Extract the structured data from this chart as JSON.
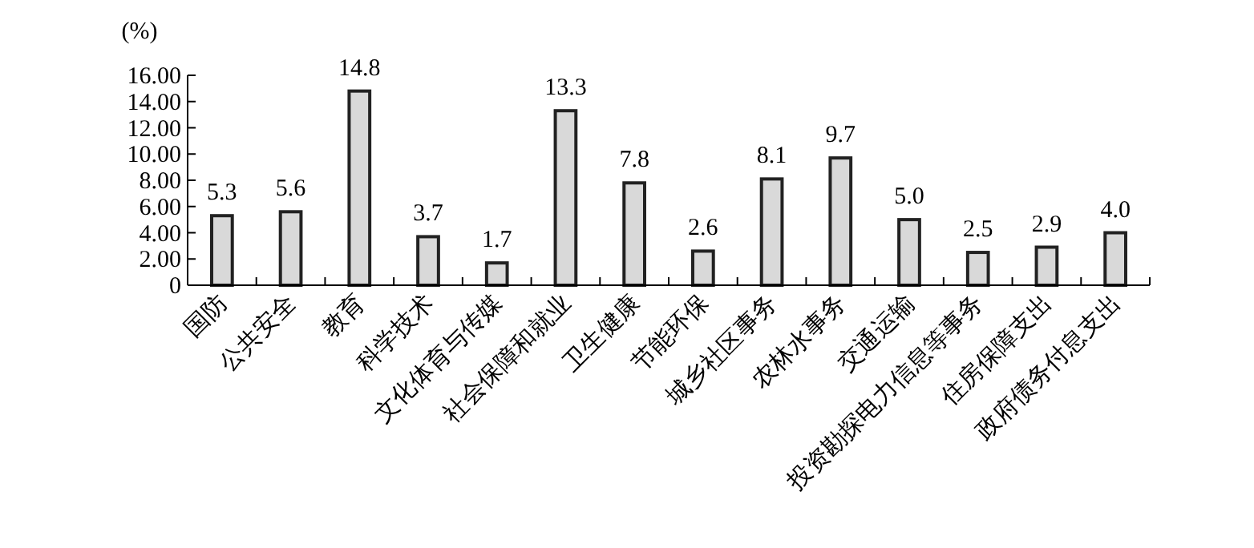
{
  "chart_data": {
    "type": "bar",
    "ylabel": "(%)",
    "categories": [
      "国防",
      "公共安全",
      "教育",
      "科学技术",
      "文化体育与传媒",
      "社会保障和就业",
      "卫生健康",
      "节能环保",
      "城乡社区事务",
      "农林水事务",
      "交通运输",
      "投资勘探电力信息等事务",
      "住房保障支出",
      "政府债务付息支出"
    ],
    "values": [
      5.3,
      5.6,
      14.8,
      3.7,
      1.7,
      13.3,
      7.8,
      2.6,
      8.1,
      9.7,
      5.0,
      2.5,
      2.9,
      4.0
    ],
    "value_labels": [
      "5.3",
      "5.6",
      "14.8",
      "3.7",
      "1.7",
      "13.3",
      "7.8",
      "2.6",
      "8.1",
      "9.7",
      "5.0",
      "2.5",
      "2.9",
      "4.0"
    ],
    "color": "#d9d9d9",
    "ylim": [
      0,
      16
    ],
    "yticks": [
      0,
      {
        "value": 2,
        "label": "2.00"
      },
      {
        "value": 4,
        "label": "4.00"
      },
      {
        "value": 6,
        "label": "6.00"
      },
      {
        "value": 8,
        "label": "8.00"
      },
      {
        "value": 10,
        "label": "10.00"
      },
      {
        "value": 12,
        "label": "12.00"
      },
      {
        "value": 14,
        "label": "14.00"
      },
      {
        "value": 16,
        "label": "16.00"
      }
    ],
    "grid": false
  }
}
